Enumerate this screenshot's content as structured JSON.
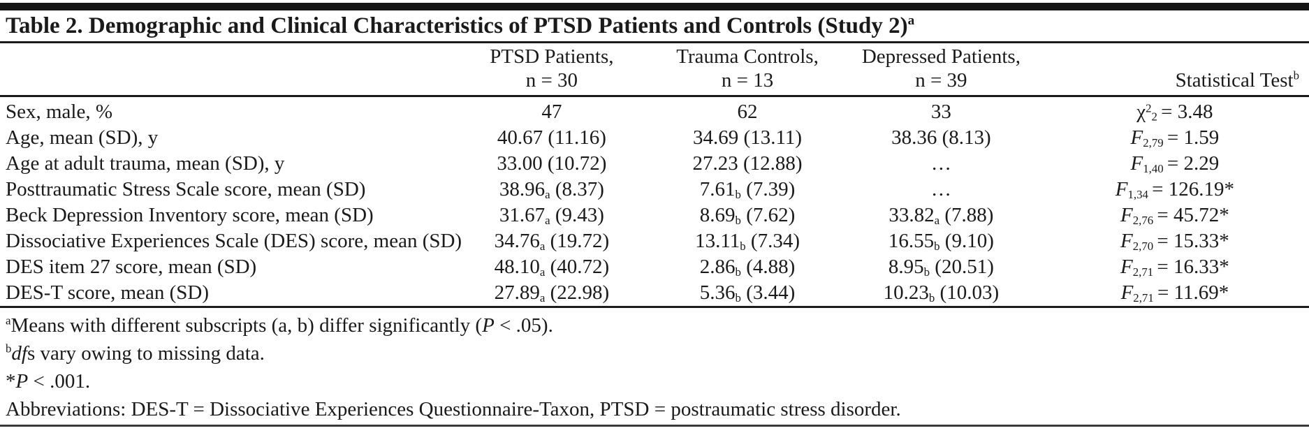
{
  "title": {
    "text": "Table 2. Demographic and Clinical Characteristics of PTSD Patients and Controls (Study 2)",
    "sup": "a"
  },
  "header": {
    "groups": [
      {
        "line1": "PTSD Patients,",
        "line2": "n = 30"
      },
      {
        "line1": "Trauma Controls,",
        "line2": "n = 13"
      },
      {
        "line1": "Depressed Patients,",
        "line2": "n = 39"
      }
    ],
    "stat": {
      "label": "Statistical Test",
      "sup": "b"
    }
  },
  "rows": [
    {
      "label": "Sex, male, %",
      "ptsd": {
        "mean": "47",
        "sub": "",
        "sd": ""
      },
      "trauma": {
        "mean": "62",
        "sub": "",
        "sd": ""
      },
      "depressed": {
        "mean": "33",
        "sub": "",
        "sd": ""
      },
      "stat": {
        "symbol": "χ",
        "sup": "2",
        "sub": "2",
        "rest": "= 3.48"
      }
    },
    {
      "label": "Age, mean (SD), y",
      "ptsd": {
        "mean": "40.67",
        "sub": "",
        "sd": " (11.16)"
      },
      "trauma": {
        "mean": "34.69",
        "sub": "",
        "sd": " (13.11)"
      },
      "depressed": {
        "mean": "38.36",
        "sub": "",
        "sd": " (8.13)"
      },
      "stat": {
        "symbol": "F",
        "sup": "",
        "sub": "2,79",
        "rest": "= 1.59"
      }
    },
    {
      "label": "Age at adult trauma, mean (SD), y",
      "ptsd": {
        "mean": "33.00",
        "sub": "",
        "sd": " (10.72)"
      },
      "trauma": {
        "mean": "27.23",
        "sub": "",
        "sd": " (12.88)"
      },
      "depressed": {
        "mean": "…",
        "sub": "",
        "sd": ""
      },
      "stat": {
        "symbol": "F",
        "sup": "",
        "sub": "1,40",
        "rest": "= 2.29"
      }
    },
    {
      "label": "Posttraumatic Stress Scale score, mean (SD)",
      "ptsd": {
        "mean": "38.96",
        "sub": "a",
        "sd": " (8.37)"
      },
      "trauma": {
        "mean": "7.61",
        "sub": "b",
        "sd": " (7.39)"
      },
      "depressed": {
        "mean": "…",
        "sub": "",
        "sd": ""
      },
      "stat": {
        "symbol": "F",
        "sup": "",
        "sub": "1,34",
        "rest": "= 126.19*"
      }
    },
    {
      "label": "Beck Depression Inventory score, mean (SD)",
      "ptsd": {
        "mean": "31.67",
        "sub": "a",
        "sd": " (9.43)"
      },
      "trauma": {
        "mean": "8.69",
        "sub": "b",
        "sd": " (7.62)"
      },
      "depressed": {
        "mean": "33.82",
        "sub": "a",
        "sd": " (7.88)"
      },
      "stat": {
        "symbol": "F",
        "sup": "",
        "sub": "2,76",
        "rest": "= 45.72*"
      }
    },
    {
      "label": "Dissociative Experiences Scale (DES) score, mean (SD)",
      "ptsd": {
        "mean": "34.76",
        "sub": "a",
        "sd": " (19.72)"
      },
      "trauma": {
        "mean": "13.11",
        "sub": "b",
        "sd": " (7.34)"
      },
      "depressed": {
        "mean": "16.55",
        "sub": "b",
        "sd": " (9.10)"
      },
      "stat": {
        "symbol": "F",
        "sup": "",
        "sub": "2,70",
        "rest": "= 15.33*"
      }
    },
    {
      "label": "DES item 27 score, mean (SD)",
      "ptsd": {
        "mean": "48.10",
        "sub": "a",
        "sd": " (40.72)"
      },
      "trauma": {
        "mean": "2.86",
        "sub": "b",
        "sd": " (4.88)"
      },
      "depressed": {
        "mean": "8.95",
        "sub": "b",
        "sd": " (20.51)"
      },
      "stat": {
        "symbol": "F",
        "sup": "",
        "sub": "2,71",
        "rest": "= 16.33*"
      }
    },
    {
      "label": "DES-T score, mean (SD)",
      "ptsd": {
        "mean": "27.89",
        "sub": "a",
        "sd": " (22.98)"
      },
      "trauma": {
        "mean": "5.36",
        "sub": "b",
        "sd": " (3.44)"
      },
      "depressed": {
        "mean": "10.23",
        "sub": "b",
        "sd": " (10.03)"
      },
      "stat": {
        "symbol": "F",
        "sup": "",
        "sub": "2,71",
        "rest": "= 11.69*"
      }
    }
  ],
  "footnotes": [
    {
      "sup": "a",
      "pre": "Means with different subscripts (a, b) differ significantly (",
      "italic": "P",
      "post": " < .05)."
    },
    {
      "sup": "b",
      "pre": "",
      "italic": "df",
      "post": "s vary owing to missing data."
    },
    {
      "sup": "",
      "pre": "*",
      "italic": "P",
      "post": " < .001."
    },
    {
      "sup": "",
      "pre": "Abbreviations: DES-T = Dissociative Experiences Questionnaire-Taxon, PTSD = postraumatic stress disorder.",
      "italic": "",
      "post": ""
    }
  ]
}
